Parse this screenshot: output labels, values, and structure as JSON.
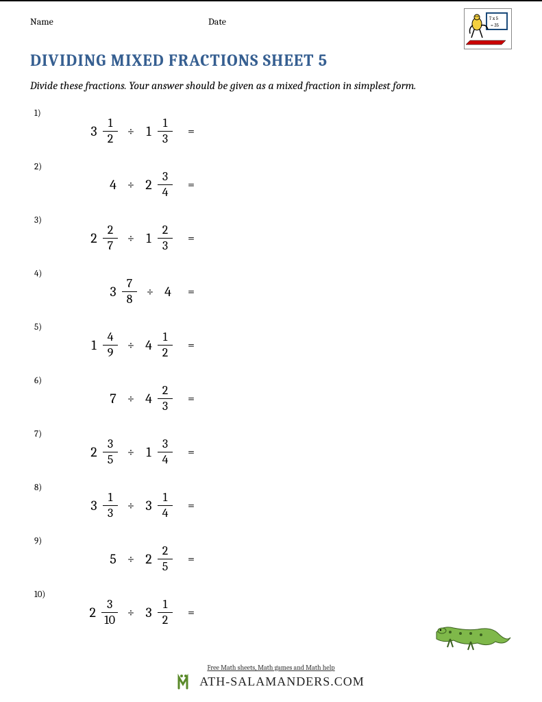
{
  "header": {
    "name_label": "Name",
    "date_label": "Date"
  },
  "title": "DIVIDING MIXED FRACTIONS SHEET 5",
  "title_color": "#365f91",
  "instructions": "Divide these fractions. Your answer should be given as a mixed fraction in simplest form.",
  "operator": "÷",
  "equals": "=",
  "problems": [
    {
      "n": "1)",
      "a": {
        "whole": "3",
        "num": "1",
        "den": "2"
      },
      "b": {
        "whole": "1",
        "num": "1",
        "den": "3"
      }
    },
    {
      "n": "2)",
      "a": {
        "whole": "4"
      },
      "b": {
        "whole": "2",
        "num": "3",
        "den": "4"
      }
    },
    {
      "n": "3)",
      "a": {
        "whole": "2",
        "num": "2",
        "den": "7"
      },
      "b": {
        "whole": "1",
        "num": "2",
        "den": "3"
      }
    },
    {
      "n": "4)",
      "a": {
        "whole": "3",
        "num": "7",
        "den": "8"
      },
      "b": {
        "whole": "4"
      }
    },
    {
      "n": "5)",
      "a": {
        "whole": "1",
        "num": "4",
        "den": "9"
      },
      "b": {
        "whole": "4",
        "num": "1",
        "den": "2"
      }
    },
    {
      "n": "6)",
      "a": {
        "whole": "7"
      },
      "b": {
        "whole": "4",
        "num": "2",
        "den": "3"
      }
    },
    {
      "n": "7)",
      "a": {
        "whole": "2",
        "num": "3",
        "den": "5"
      },
      "b": {
        "whole": "1",
        "num": "3",
        "den": "4"
      }
    },
    {
      "n": "8)",
      "a": {
        "whole": "3",
        "num": "1",
        "den": "3"
      },
      "b": {
        "whole": "3",
        "num": "1",
        "den": "4"
      }
    },
    {
      "n": "9)",
      "a": {
        "whole": "5"
      },
      "b": {
        "whole": "2",
        "num": "2",
        "den": "5"
      }
    },
    {
      "n": "10)",
      "a": {
        "whole": "2",
        "num": "3",
        "den": "10"
      },
      "b": {
        "whole": "3",
        "num": "1",
        "den": "2"
      }
    }
  ],
  "footer": {
    "tagline": "Free Math sheets, Math games and Math help",
    "brand": "ATH-SALAMANDERS.COM"
  },
  "colors": {
    "text": "#000000",
    "background": "#ffffff",
    "salamander_body": "#7fb84a",
    "salamander_dark": "#3a5f1f",
    "logo_yellow": "#f4d03f",
    "logo_board": "#ffffff",
    "logo_border": "#1a4a7a"
  }
}
